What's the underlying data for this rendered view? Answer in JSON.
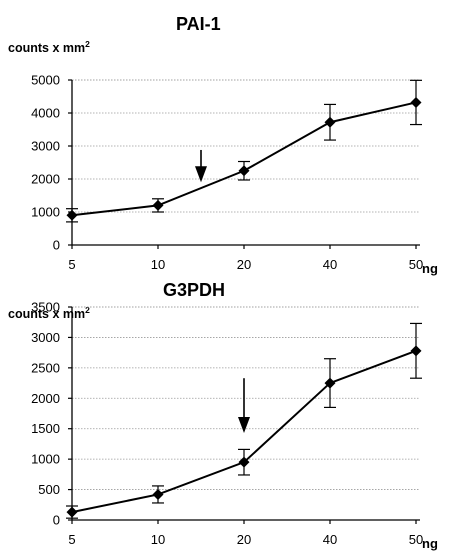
{
  "chart_data": [
    {
      "type": "line",
      "title": "PAI-1",
      "ylabel": "counts x mm",
      "ylabel_superscript": "2",
      "xlabel": "ng",
      "categories": [
        "5",
        "10",
        "20",
        "40",
        "50"
      ],
      "values": [
        900,
        1200,
        2250,
        3720,
        4320
      ],
      "errors": [
        200,
        200,
        280,
        540,
        670
      ],
      "ylim": [
        0,
        5000
      ],
      "yticks": [
        0,
        1000,
        2000,
        3000,
        4000,
        5000
      ],
      "grid": true,
      "arrow_x": 15,
      "arrow_y": [
        2880,
        1900
      ]
    },
    {
      "type": "line",
      "title": "G3PDH",
      "ylabel": "counts x mm",
      "ylabel_superscript": "2",
      "xlabel": "ng",
      "categories": [
        "5",
        "10",
        "20",
        "40",
        "50"
      ],
      "values": [
        130,
        420,
        950,
        2250,
        2780
      ],
      "errors": [
        100,
        140,
        210,
        400,
        450
      ],
      "ylim": [
        0,
        3500
      ],
      "yticks": [
        0,
        500,
        1000,
        1500,
        2000,
        2500,
        3000,
        3500
      ],
      "grid": true,
      "arrow_x": 20,
      "arrow_y": [
        2330,
        1430
      ]
    }
  ]
}
